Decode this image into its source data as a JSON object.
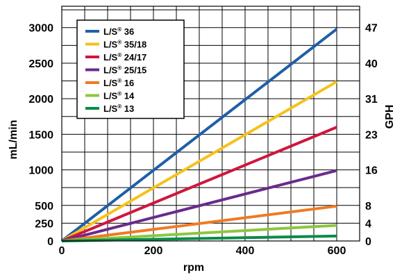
{
  "chart_data": {
    "type": "line",
    "xlabel": "rpm",
    "ylabel": "mL/min",
    "y2label": "GPH",
    "xlim": [
      0,
      650
    ],
    "ylim": [
      0,
      3300
    ],
    "x_ticks": [
      "0",
      "200",
      "400",
      "600"
    ],
    "y_ticks": [
      "0",
      "250",
      "500",
      "1000",
      "1500",
      "2000",
      "2500",
      "3000"
    ],
    "y2_ticks": [
      "0",
      "4",
      "8",
      "16",
      "23",
      "31",
      "40",
      "47"
    ],
    "grid": true,
    "legend_position": "top-left",
    "series": [
      {
        "name": "L/S® 36",
        "color": "#1f5fa8",
        "x": [
          0,
          600
        ],
        "y": [
          0,
          2980
        ]
      },
      {
        "name": "L/S® 35/18",
        "color": "#f5c21b",
        "x": [
          0,
          600
        ],
        "y": [
          0,
          2240
        ]
      },
      {
        "name": "L/S® 24/17",
        "color": "#d0163e",
        "x": [
          0,
          600
        ],
        "y": [
          0,
          1600
        ]
      },
      {
        "name": "L/S® 25/15",
        "color": "#6a2a8c",
        "x": [
          0,
          600
        ],
        "y": [
          0,
          990
        ]
      },
      {
        "name": "L/S® 16",
        "color": "#f07a22",
        "x": [
          0,
          600
        ],
        "y": [
          0,
          490
        ]
      },
      {
        "name": "L/S® 14",
        "color": "#8cc63f",
        "x": [
          0,
          600
        ],
        "y": [
          0,
          220
        ]
      },
      {
        "name": "L/S® 13",
        "color": "#0a8a4a",
        "x": [
          0,
          600
        ],
        "y": [
          0,
          70
        ]
      }
    ]
  }
}
